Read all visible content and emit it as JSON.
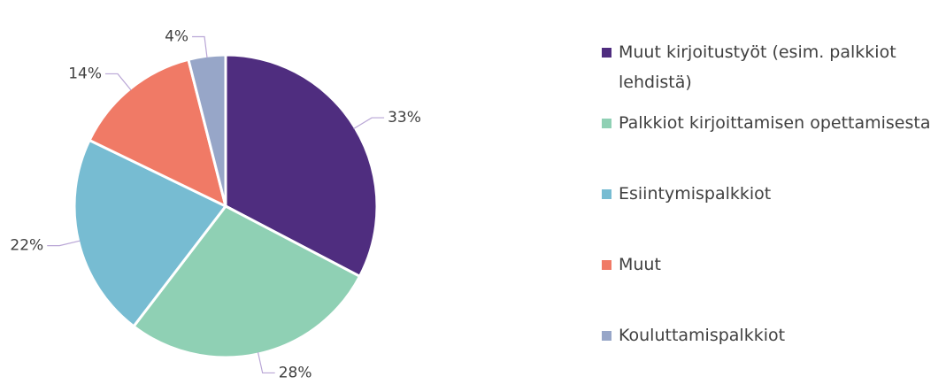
{
  "chart_data": {
    "type": "pie",
    "categories": [
      "Muut kirjoitustyöt (esim. palkkiot lehdistä)",
      "Palkkiot kirjoittamisen opettamisesta",
      "Esiintymispalkkiot",
      "Muut",
      "Kouluttamispalkkiot"
    ],
    "values": [
      33,
      28,
      22,
      14,
      4
    ],
    "value_labels": [
      "33%",
      "28%",
      "22%",
      "14%",
      "4%"
    ],
    "colors": [
      "#4f2d7f",
      "#8fd0b4",
      "#77bcd2",
      "#f07a66",
      "#97a6c8"
    ],
    "legend": "right"
  }
}
